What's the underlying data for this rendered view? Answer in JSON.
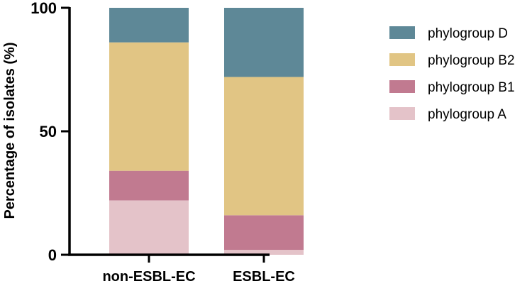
{
  "chart_data": {
    "type": "bar",
    "stacked": true,
    "categories": [
      "non-ESBL-EC",
      "ESBL-EC"
    ],
    "series": [
      {
        "name": "phylogroup A",
        "values": [
          22,
          2
        ],
        "color": "#e4c3c9"
      },
      {
        "name": "phylogroup B1",
        "values": [
          12,
          14
        ],
        "color": "#c17a90"
      },
      {
        "name": "phylogroup B2",
        "values": [
          52,
          56
        ],
        "color": "#e1c584"
      },
      {
        "name": "phylogroup D",
        "values": [
          14,
          28
        ],
        "color": "#5e8897"
      }
    ],
    "legend_order": [
      "phylogroup D",
      "phylogroup B2",
      "phylogroup B1",
      "phylogroup A"
    ],
    "ylabel": "Percentage of isolates (%)",
    "xlabel": "",
    "ylim": [
      0,
      100
    ],
    "yticks": [
      "0",
      "50",
      "100"
    ],
    "grid": false,
    "legend_position": "right"
  }
}
